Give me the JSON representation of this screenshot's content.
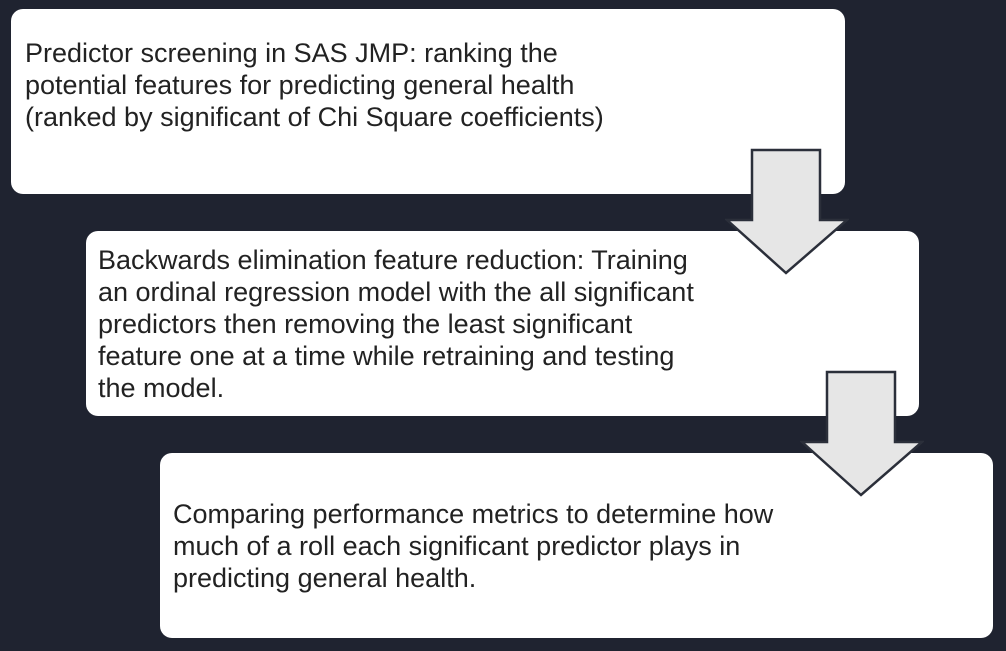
{
  "steps": [
    {
      "text": "Predictor screening in SAS JMP: ranking the potential features for predicting general health (ranked by significant of Chi Square coefficients)"
    },
    {
      "text": "Backwards elimination feature reduction: Training an ordinal regression model with the all significant predictors then removing the least significant feature one at a time while retraining and testing the model."
    },
    {
      "text": "Comparing performance metrics to determine how much of a roll each significant predictor plays in predicting general health."
    }
  ],
  "colors": {
    "background": "#1f2330",
    "box_fill": "#ffffff",
    "arrow_fill": "#e6e6e6",
    "arrow_stroke": "#2b2f3a",
    "text": "#222222"
  }
}
